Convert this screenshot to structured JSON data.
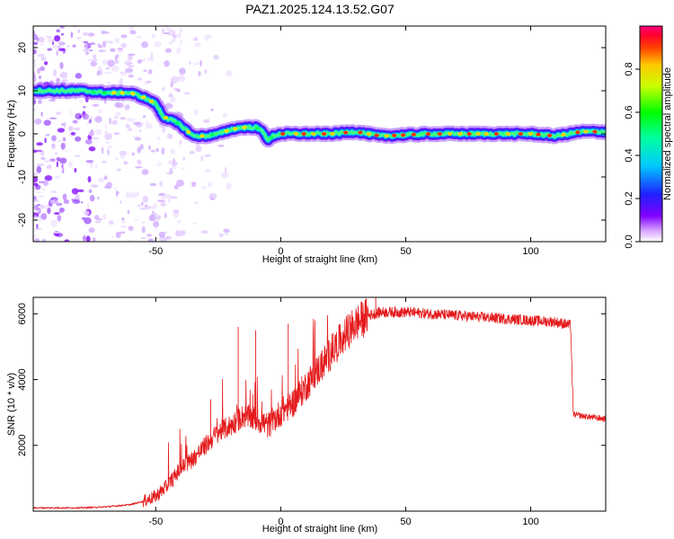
{
  "title": "PAZ1.2025.124.13.52.G07",
  "chart_data": [
    {
      "type": "heatmap",
      "xlabel": "Height of straight line (km)",
      "ylabel": "Frequency (Hz)",
      "xlim": [
        -99,
        130
      ],
      "ylim": [
        -25,
        25
      ],
      "x_ticks": [
        -50,
        0,
        50,
        100
      ],
      "y_ticks": [
        -20,
        -10,
        0,
        10,
        20
      ],
      "colorbar": {
        "label": "Normalized spectral amplitude",
        "range": [
          0,
          1
        ],
        "ticks": [
          "0.0",
          "0.2",
          "0.4",
          "0.6",
          "0.8"
        ],
        "colormap": "rainbow (white-violet-blue-cyan-green-yellow-red-magenta)"
      },
      "ridge": {
        "description": "dominant frequency line",
        "points": [
          [
            -99,
            10
          ],
          [
            -80,
            10
          ],
          [
            -70,
            9.5
          ],
          [
            -60,
            9.5
          ],
          [
            -55,
            8.5
          ],
          [
            -50,
            7
          ],
          [
            -47,
            4
          ],
          [
            -43,
            3
          ],
          [
            -40,
            2
          ],
          [
            -35,
            -0.5
          ],
          [
            -30,
            -0.5
          ],
          [
            -25,
            0
          ],
          [
            -20,
            1
          ],
          [
            -15,
            1.5
          ],
          [
            -10,
            1.5
          ],
          [
            -7,
            0.5
          ],
          [
            -5,
            -1.5
          ],
          [
            -3,
            -0.5
          ],
          [
            0,
            0
          ],
          [
            20,
            0
          ],
          [
            30,
            0.5
          ],
          [
            40,
            -0.5
          ],
          [
            60,
            0
          ],
          [
            80,
            0
          ],
          [
            100,
            0
          ],
          [
            110,
            -0.5
          ],
          [
            120,
            0.5
          ],
          [
            130,
            0.5
          ]
        ]
      }
    },
    {
      "type": "line",
      "xlabel": "Height of straight line (km)",
      "ylabel": "SNR (10 * v/v)",
      "xlim": [
        -99,
        130
      ],
      "ylim": [
        0,
        6500
      ],
      "x_ticks": [
        -50,
        0,
        50,
        100
      ],
      "y_ticks": [
        2000,
        4000,
        6000
      ],
      "series": [
        {
          "color": "#e41a1c",
          "points": [
            [
              -99,
              100
            ],
            [
              -80,
              100
            ],
            [
              -70,
              130
            ],
            [
              -60,
              200
            ],
            [
              -55,
              300
            ],
            [
              -50,
              450
            ],
            [
              -45,
              800
            ],
            [
              -40,
              1300
            ],
            [
              -35,
              1600
            ],
            [
              -30,
              2000
            ],
            [
              -25,
              2400
            ],
            [
              -20,
              2600
            ],
            [
              -15,
              2900
            ],
            [
              -10,
              2800
            ],
            [
              -5,
              2600
            ],
            [
              0,
              3000
            ],
            [
              5,
              3300
            ],
            [
              10,
              3800
            ],
            [
              15,
              4300
            ],
            [
              20,
              4800
            ],
            [
              25,
              5300
            ],
            [
              30,
              5700
            ],
            [
              35,
              5950
            ],
            [
              40,
              6050
            ],
            [
              50,
              6050
            ],
            [
              60,
              6000
            ],
            [
              70,
              5950
            ],
            [
              80,
              5900
            ],
            [
              90,
              5850
            ],
            [
              100,
              5800
            ],
            [
              110,
              5750
            ],
            [
              116,
              5650
            ],
            [
              117,
              2950
            ],
            [
              120,
              2900
            ],
            [
              130,
              2800
            ]
          ]
        }
      ],
      "spikes": [
        [
          -28,
          3400
        ],
        [
          -17,
          5600
        ],
        [
          -10,
          5500
        ],
        [
          3,
          5700
        ],
        [
          38,
          6500
        ]
      ]
    }
  ]
}
